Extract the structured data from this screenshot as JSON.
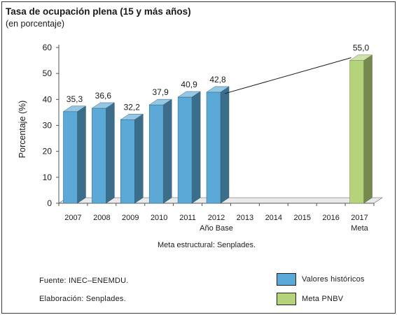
{
  "chart_data": {
    "type": "bar",
    "title": "Tasa de ocupación plena (15 y más años)",
    "subtitle": "(en porcentaje)",
    "ylabel": "Porcentaje (%)",
    "ylim": [
      0,
      60
    ],
    "yticks": [
      0,
      10,
      20,
      30,
      40,
      50,
      60
    ],
    "categories": [
      "2007",
      "2008",
      "2009",
      "2010",
      "2011",
      "2012",
      "2013",
      "2014",
      "2015",
      "2016",
      "2017"
    ],
    "category_sublabels": {
      "2012": "Año Base",
      "2017": "Meta"
    },
    "series": [
      {
        "name": "Valores históricos",
        "color": "#5aa9d6",
        "values": [
          35.3,
          36.6,
          32.2,
          37.9,
          40.9,
          42.8,
          null,
          null,
          null,
          null,
          null
        ],
        "labels": [
          "35,3",
          "36,6",
          "32,2",
          "37,9",
          "40,9",
          "42,8",
          "",
          "",
          "",
          "",
          ""
        ]
      },
      {
        "name": "Meta PNBV",
        "color": "#b5d47a",
        "values": [
          null,
          null,
          null,
          null,
          null,
          null,
          null,
          null,
          null,
          null,
          55.0
        ],
        "labels": [
          "",
          "",
          "",
          "",
          "",
          "",
          "",
          "",
          "",
          "",
          "55,0"
        ]
      }
    ],
    "annotation": "Meta estructural: Senplades.",
    "legend_position": "bottom-right",
    "grid": false
  },
  "notes": {
    "source": "Fuente: INEC–ENEMDU.",
    "elaboration": "Elaboración: Senplades."
  }
}
